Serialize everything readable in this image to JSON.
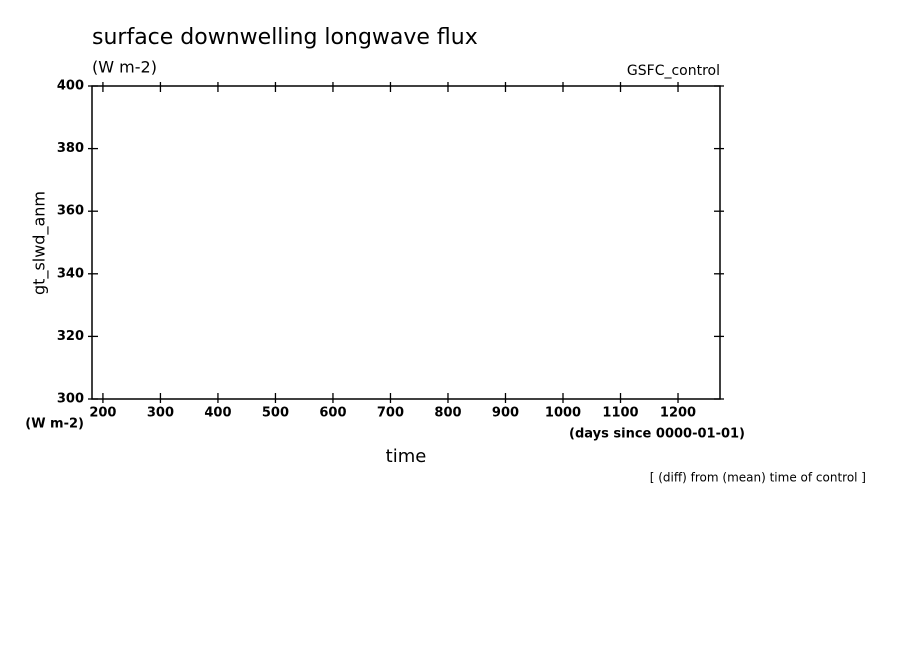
{
  "chart_data": {
    "type": "line",
    "title": "surface downwelling longwave flux",
    "subtitle": "(W m-2)",
    "annotation": "GSFC_control",
    "ylabel": "gt_slwd_anm",
    "yunit": "(W m-2)",
    "xlabel": "time",
    "xunit": "(days since 0000-01-01)",
    "note": "[ (diff) from (mean) time of control ]",
    "xlim": [
      181,
      1273
    ],
    "xticks": [
      200,
      300,
      400,
      500,
      600,
      700,
      800,
      900,
      1000,
      1100,
      1200
    ],
    "ylim": [
      300,
      400
    ],
    "yticks": [
      300,
      320,
      340,
      360,
      380,
      400
    ],
    "series": []
  }
}
